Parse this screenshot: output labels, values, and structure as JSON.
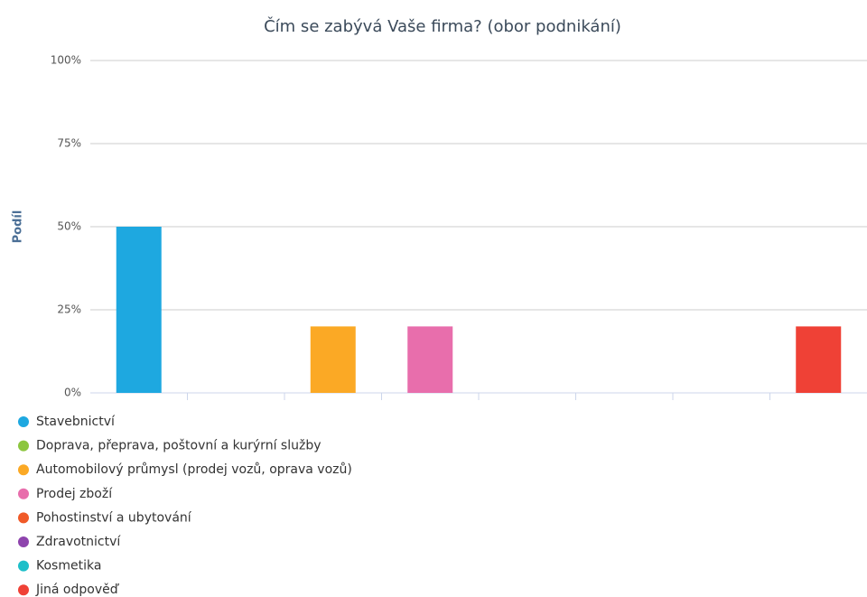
{
  "chart_data": {
    "type": "bar",
    "title": "Čím se zabývá Vaše firma? (obor podnikání)",
    "y_axis_label": "Podíl",
    "categories": [
      "Stavebnictví",
      "Doprava, přeprava, poštovní a kurýrní služby",
      "Automobilový průmysl (prodej vozů, oprava vozů)",
      "Prodej zboží",
      "Pohostinství a ubytování",
      "Zdravotnictví",
      "Kosmetika",
      "Jiná odpověď"
    ],
    "values": [
      50,
      0,
      20,
      20,
      0,
      0,
      0,
      20
    ],
    "colors": [
      "#1ea8e0",
      "#8cc63f",
      "#fba925",
      "#e86eac",
      "#f05a28",
      "#8e44ad",
      "#1ebfc9",
      "#ef4136"
    ],
    "ylim": [
      0,
      100
    ],
    "yticks": [
      {
        "value": 0,
        "label": "0%"
      },
      {
        "value": 25,
        "label": "25%"
      },
      {
        "value": 50,
        "label": "50%"
      },
      {
        "value": 75,
        "label": "75%"
      },
      {
        "value": 100,
        "label": "100%"
      }
    ],
    "grid": true,
    "legend": "bottom"
  }
}
